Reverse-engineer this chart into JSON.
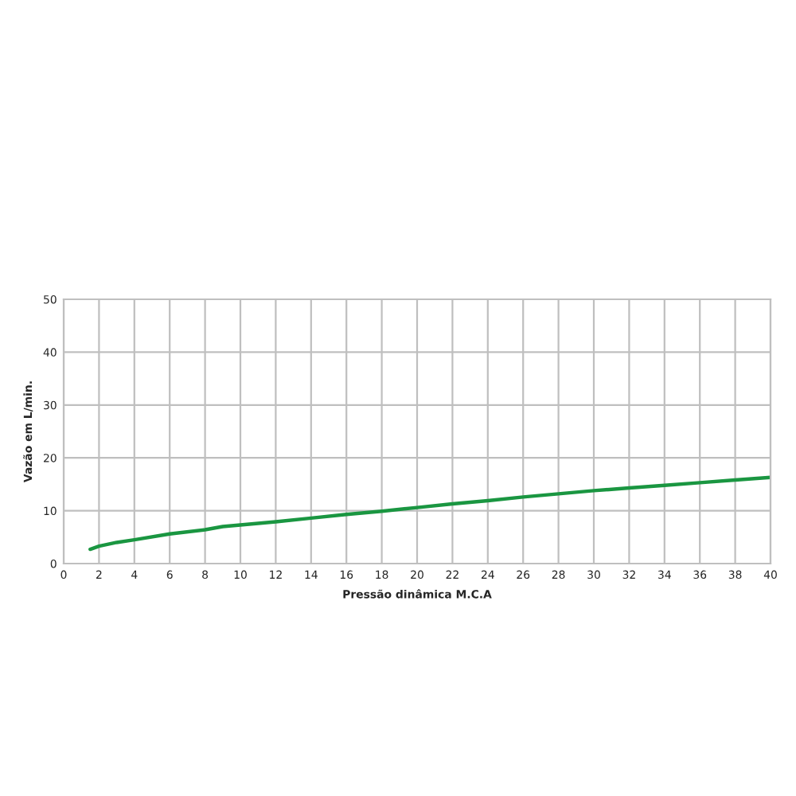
{
  "chart_data": {
    "type": "line",
    "xlabel": "Pressão dinâmica M.C.A",
    "ylabel": "Vazão em L/min.",
    "x": [
      1.5,
      2,
      3,
      4,
      6,
      8,
      9,
      10,
      12,
      14,
      16,
      18,
      20,
      22,
      24,
      26,
      28,
      30,
      32,
      34,
      36,
      38,
      40
    ],
    "series": [
      {
        "color": "#1a9641",
        "values": [
          2.7,
          3.3,
          4.0,
          4.5,
          5.6,
          6.4,
          7.0,
          7.3,
          7.9,
          8.6,
          9.3,
          9.9,
          10.6,
          11.3,
          11.9,
          12.6,
          13.2,
          13.8,
          14.3,
          14.8,
          15.3,
          15.8,
          16.3
        ]
      }
    ],
    "xlim": [
      0,
      40
    ],
    "ylim": [
      0,
      50
    ],
    "xticks": [
      0,
      2,
      4,
      6,
      8,
      10,
      12,
      14,
      16,
      18,
      20,
      22,
      24,
      26,
      28,
      30,
      32,
      34,
      36,
      38,
      40
    ],
    "yticks": [
      0,
      10,
      20,
      30,
      40,
      50
    ],
    "grid": true,
    "legend": false,
    "marker": "none",
    "line_style": "solid"
  }
}
